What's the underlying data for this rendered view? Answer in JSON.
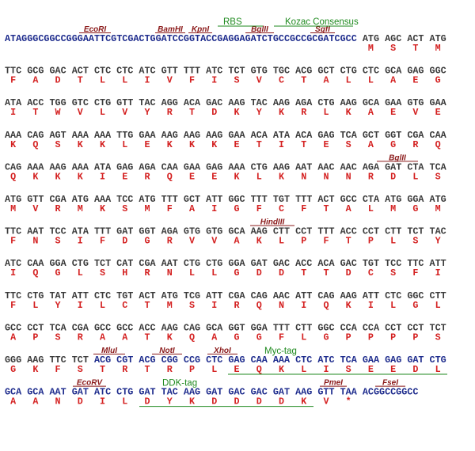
{
  "sequence_rows": [
    {
      "prefix": "ATAGGGCGGCCGGGAATTCGTCGACTGGATCCGGTACCGAGGAGATCTGCCGCCGCGATCGCC",
      "codons": [
        "ATG",
        "AGC",
        "ACT",
        "ATG"
      ],
      "amino_acids": [
        "M",
        "S",
        "T",
        "M"
      ],
      "sites": [
        "EcoRI",
        "BamHI",
        "KpnI",
        "BglII",
        "SgfI"
      ],
      "tags": [
        "RBS",
        "Kozac Consensus"
      ]
    },
    {
      "codons": [
        "TTC",
        "GCG",
        "GAC",
        "ACT",
        "CTC",
        "CTC",
        "ATC",
        "GTT",
        "TTT",
        "ATC",
        "TCT",
        "GTG",
        "TGC",
        "ACG",
        "GCT",
        "CTG",
        "CTC",
        "GCA",
        "GAG",
        "GGC"
      ],
      "amino_acids": [
        "F",
        "A",
        "D",
        "T",
        "L",
        "L",
        "I",
        "V",
        "F",
        "I",
        "S",
        "V",
        "C",
        "T",
        "A",
        "L",
        "L",
        "A",
        "E",
        "G"
      ]
    },
    {
      "codons": [
        "ATA",
        "ACC",
        "TGG",
        "GTC",
        "CTG",
        "GTT",
        "TAC",
        "AGG",
        "ACA",
        "GAC",
        "AAG",
        "TAC",
        "AAG",
        "AGA",
        "CTG",
        "AAG",
        "GCA",
        "GAA",
        "GTG",
        "GAA"
      ],
      "amino_acids": [
        "I",
        "T",
        "W",
        "V",
        "L",
        "V",
        "Y",
        "R",
        "T",
        "D",
        "K",
        "Y",
        "K",
        "R",
        "L",
        "K",
        "A",
        "E",
        "V",
        "E"
      ]
    },
    {
      "codons": [
        "AAA",
        "CAG",
        "AGT",
        "AAA",
        "AAA",
        "TTG",
        "GAA",
        "AAG",
        "AAG",
        "AAG",
        "GAA",
        "ACA",
        "ATA",
        "ACA",
        "GAG",
        "TCA",
        "GCT",
        "GGT",
        "CGA",
        "CAA"
      ],
      "amino_acids": [
        "K",
        "Q",
        "S",
        "K",
        "K",
        "L",
        "E",
        "K",
        "K",
        "K",
        "E",
        "T",
        "I",
        "T",
        "E",
        "S",
        "A",
        "G",
        "R",
        "Q"
      ]
    },
    {
      "codons": [
        "CAG",
        "AAA",
        "AAG",
        "AAA",
        "ATA",
        "GAG",
        "AGA",
        "CAA",
        "GAA",
        "GAG",
        "AAA",
        "CTG",
        "AAG",
        "AAT",
        "AAC",
        "AAC",
        "AGA",
        "GAT",
        "CTA",
        "TCA"
      ],
      "amino_acids": [
        "Q",
        "K",
        "K",
        "K",
        "I",
        "E",
        "R",
        "Q",
        "E",
        "E",
        "K",
        "L",
        "K",
        "N",
        "N",
        "N",
        "R",
        "D",
        "L",
        "S"
      ],
      "sites": [
        "BglII"
      ]
    },
    {
      "codons": [
        "ATG",
        "GTT",
        "CGA",
        "ATG",
        "AAA",
        "TCC",
        "ATG",
        "TTT",
        "GCT",
        "ATT",
        "GGC",
        "TTT",
        "TGT",
        "TTT",
        "ACT",
        "GCC",
        "CTA",
        "ATG",
        "GGA",
        "ATG"
      ],
      "amino_acids": [
        "M",
        "V",
        "R",
        "M",
        "K",
        "S",
        "M",
        "F",
        "A",
        "I",
        "G",
        "F",
        "C",
        "F",
        "T",
        "A",
        "L",
        "M",
        "G",
        "M"
      ]
    },
    {
      "codons": [
        "TTC",
        "AAT",
        "TCC",
        "ATA",
        "TTT",
        "GAT",
        "GGT",
        "AGA",
        "GTG",
        "GTG",
        "GCA",
        "AAG",
        "CTT",
        "CCT",
        "TTT",
        "ACC",
        "CCT",
        "CTT",
        "TCT",
        "TAC"
      ],
      "amino_acids": [
        "F",
        "N",
        "S",
        "I",
        "F",
        "D",
        "G",
        "R",
        "V",
        "V",
        "A",
        "K",
        "L",
        "P",
        "F",
        "T",
        "P",
        "L",
        "S",
        "Y"
      ],
      "sites": [
        "HindIII"
      ]
    },
    {
      "codons": [
        "ATC",
        "CAA",
        "GGA",
        "CTG",
        "TCT",
        "CAT",
        "CGA",
        "AAT",
        "CTG",
        "CTG",
        "GGA",
        "GAT",
        "GAC",
        "ACC",
        "ACA",
        "GAC",
        "TGT",
        "TCC",
        "TTC",
        "ATT"
      ],
      "amino_acids": [
        "I",
        "Q",
        "G",
        "L",
        "S",
        "H",
        "R",
        "N",
        "L",
        "L",
        "G",
        "D",
        "D",
        "T",
        "T",
        "D",
        "C",
        "S",
        "F",
        "I"
      ]
    },
    {
      "codons": [
        "TTC",
        "CTG",
        "TAT",
        "ATT",
        "CTC",
        "TGT",
        "ACT",
        "ATG",
        "TCG",
        "ATT",
        "CGA",
        "CAG",
        "AAC",
        "ATT",
        "CAG",
        "AAG",
        "ATT",
        "CTC",
        "GGC",
        "CTT"
      ],
      "amino_acids": [
        "F",
        "L",
        "Y",
        "I",
        "L",
        "C",
        "T",
        "M",
        "S",
        "I",
        "R",
        "Q",
        "N",
        "I",
        "Q",
        "K",
        "I",
        "L",
        "G",
        "L"
      ]
    },
    {
      "codons": [
        "GCC",
        "CCT",
        "TCA",
        "CGA",
        "GCC",
        "GCC",
        "ACC",
        "AAG",
        "CAG",
        "GCA",
        "GGT",
        "GGA",
        "TTT",
        "CTT",
        "GGC",
        "CCA",
        "CCA",
        "CCT",
        "CCT",
        "TCT"
      ],
      "amino_acids": [
        "A",
        "P",
        "S",
        "R",
        "A",
        "A",
        "T",
        "K",
        "Q",
        "A",
        "G",
        "G",
        "F",
        "L",
        "G",
        "P",
        "P",
        "P",
        "P",
        "S"
      ]
    },
    {
      "codons": [
        "GGG",
        "AAG",
        "TTC",
        "TCT",
        "ACG",
        "CGT",
        "ACG",
        "CGG",
        "CCG",
        "CTC",
        "GAG",
        "CAA",
        "AAA",
        "CTC",
        "ATC",
        "TCA",
        "GAA",
        "GAG",
        "GAT",
        "CTG"
      ],
      "amino_acids": [
        "G",
        "K",
        "F",
        "S",
        "T",
        "R",
        "T",
        "R",
        "P",
        "L",
        "E",
        "Q",
        "K",
        "L",
        "I",
        "S",
        "E",
        "E",
        "D",
        "L"
      ],
      "sites": [
        "MluI",
        "NotI",
        "XhoI"
      ],
      "tags": [
        "Myc-tag"
      ]
    },
    {
      "codons": [
        "GCA",
        "GCA",
        "AAT",
        "GAT",
        "ATC",
        "CTG",
        "GAT",
        "TAC",
        "AAG",
        "GAT",
        "GAC",
        "GAC",
        "GAT",
        "AAG",
        "GTT",
        "TAA"
      ],
      "suffix": "ACGGCCGGCC",
      "amino_acids": [
        "A",
        "A",
        "N",
        "D",
        "I",
        "L",
        "D",
        "Y",
        "K",
        "D",
        "D",
        "D",
        "D",
        "K",
        "V",
        "*"
      ],
      "sites": [
        "EcoRV",
        "PmeI",
        "FseI"
      ],
      "tags": [
        "DDK-tag"
      ]
    }
  ]
}
